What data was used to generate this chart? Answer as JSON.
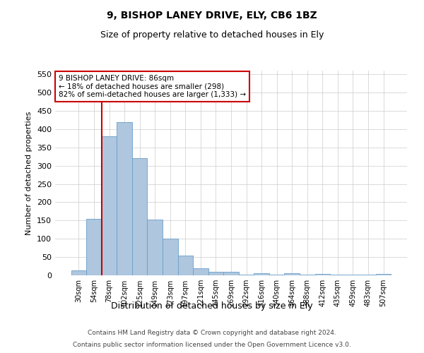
{
  "title": "9, BISHOP LANEY DRIVE, ELY, CB6 1BZ",
  "subtitle": "Size of property relative to detached houses in Ely",
  "xlabel": "Distribution of detached houses by size in Ely",
  "ylabel": "Number of detached properties",
  "footer_line1": "Contains HM Land Registry data © Crown copyright and database right 2024.",
  "footer_line2": "Contains public sector information licensed under the Open Government Licence v3.0.",
  "bar_labels": [
    "30sqm",
    "54sqm",
    "78sqm",
    "102sqm",
    "125sqm",
    "149sqm",
    "173sqm",
    "197sqm",
    "221sqm",
    "245sqm",
    "269sqm",
    "292sqm",
    "316sqm",
    "340sqm",
    "364sqm",
    "388sqm",
    "412sqm",
    "435sqm",
    "459sqm",
    "483sqm",
    "507sqm"
  ],
  "bar_values": [
    13,
    155,
    380,
    420,
    320,
    153,
    100,
    55,
    20,
    10,
    10,
    2,
    5,
    2,
    5,
    2,
    3,
    1,
    1,
    1,
    3
  ],
  "bar_color": "#aec6de",
  "bar_edge_color": "#6a9fca",
  "ylim": [
    0,
    560
  ],
  "yticks": [
    0,
    50,
    100,
    150,
    200,
    250,
    300,
    350,
    400,
    450,
    500,
    550
  ],
  "property_line_color": "#cc0000",
  "annotation_text": "9 BISHOP LANEY DRIVE: 86sqm\n← 18% of detached houses are smaller (298)\n82% of semi-detached houses are larger (1,333) →",
  "annotation_box_color": "#ffffff",
  "annotation_box_edgecolor": "#cc0000",
  "background_color": "#ffffff",
  "grid_color": "#cccccc"
}
